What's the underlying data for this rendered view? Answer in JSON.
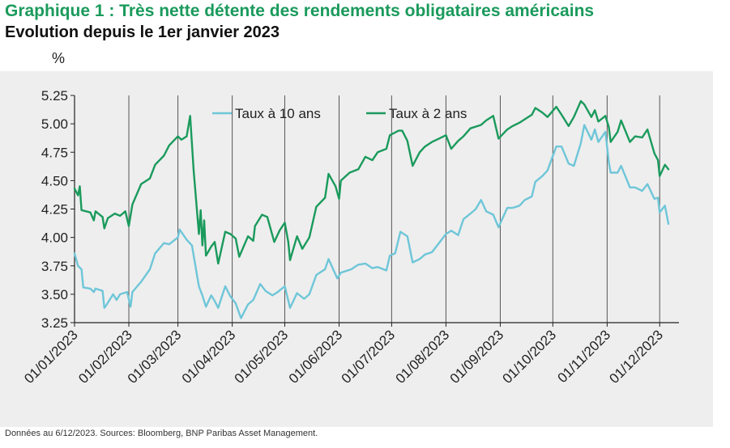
{
  "header": {
    "title": "Graphique 1 : Très nette détente des rendements obligataires américains",
    "subtitle": "Evolution depuis le 1er janvier 2023",
    "unit": "%"
  },
  "footnote": "Données au 6/12/2023. Sources: Bloomberg, BNP Paribas Asset Management.",
  "chart_data": {
    "type": "line",
    "ylabel": "%",
    "ylim": [
      3.25,
      5.25
    ],
    "yticks": [
      "5.25",
      "5.00",
      "4.75",
      "4.50",
      "4.25",
      "4.00",
      "3.75",
      "3.50",
      "3.25"
    ],
    "x_tick_labels": [
      "01/01/2023",
      "01/02/2023",
      "01/03/2023",
      "01/04/2023",
      "01/05/2023",
      "01/06/2023",
      "01/07/2023",
      "01/08/2023",
      "01/09/2023",
      "01/10/2023",
      "01/11/2023",
      "01/12/2023"
    ],
    "x_range": [
      "2023-01-01",
      "2023-12-12"
    ],
    "grid": "vertical",
    "legend_position": "top",
    "series": [
      {
        "name": "Taux à 10 ans",
        "color": "#6ec6d8",
        "points": [
          [
            "2023-01-01",
            3.86
          ],
          [
            "2023-01-03",
            3.75
          ],
          [
            "2023-01-05",
            3.72
          ],
          [
            "2023-01-06",
            3.56
          ],
          [
            "2023-01-10",
            3.55
          ],
          [
            "2023-01-12",
            3.52
          ],
          [
            "2023-01-13",
            3.55
          ],
          [
            "2023-01-17",
            3.53
          ],
          [
            "2023-01-18",
            3.38
          ],
          [
            "2023-01-19",
            3.4
          ],
          [
            "2023-01-23",
            3.5
          ],
          [
            "2023-01-25",
            3.45
          ],
          [
            "2023-01-27",
            3.5
          ],
          [
            "2023-01-31",
            3.52
          ],
          [
            "2023-02-02",
            3.39
          ],
          [
            "2023-02-03",
            3.52
          ],
          [
            "2023-02-08",
            3.61
          ],
          [
            "2023-02-13",
            3.72
          ],
          [
            "2023-02-16",
            3.86
          ],
          [
            "2023-02-21",
            3.95
          ],
          [
            "2023-02-24",
            3.94
          ],
          [
            "2023-03-01",
            4.0
          ],
          [
            "2023-03-02",
            4.07
          ],
          [
            "2023-03-06",
            3.98
          ],
          [
            "2023-03-09",
            3.93
          ],
          [
            "2023-03-13",
            3.57
          ],
          [
            "2023-03-15",
            3.49
          ],
          [
            "2023-03-17",
            3.39
          ],
          [
            "2023-03-20",
            3.49
          ],
          [
            "2023-03-22",
            3.44
          ],
          [
            "2023-03-24",
            3.38
          ],
          [
            "2023-03-28",
            3.57
          ],
          [
            "2023-03-31",
            3.48
          ],
          [
            "2023-04-03",
            3.42
          ],
          [
            "2023-04-06",
            3.29
          ],
          [
            "2023-04-10",
            3.41
          ],
          [
            "2023-04-13",
            3.45
          ],
          [
            "2023-04-17",
            3.59
          ],
          [
            "2023-04-20",
            3.53
          ],
          [
            "2023-04-24",
            3.49
          ],
          [
            "2023-04-27",
            3.52
          ],
          [
            "2023-05-01",
            3.57
          ],
          [
            "2023-05-04",
            3.38
          ],
          [
            "2023-05-08",
            3.51
          ],
          [
            "2023-05-12",
            3.46
          ],
          [
            "2023-05-15",
            3.5
          ],
          [
            "2023-05-19",
            3.67
          ],
          [
            "2023-05-24",
            3.72
          ],
          [
            "2023-05-26",
            3.81
          ],
          [
            "2023-05-31",
            3.64
          ],
          [
            "2023-06-02",
            3.69
          ],
          [
            "2023-06-08",
            3.72
          ],
          [
            "2023-06-12",
            3.76
          ],
          [
            "2023-06-16",
            3.77
          ],
          [
            "2023-06-20",
            3.73
          ],
          [
            "2023-06-23",
            3.74
          ],
          [
            "2023-06-28",
            3.71
          ],
          [
            "2023-06-30",
            3.84
          ],
          [
            "2023-07-03",
            3.86
          ],
          [
            "2023-07-06",
            4.05
          ],
          [
            "2023-07-10",
            4.01
          ],
          [
            "2023-07-13",
            3.78
          ],
          [
            "2023-07-17",
            3.81
          ],
          [
            "2023-07-20",
            3.85
          ],
          [
            "2023-07-24",
            3.87
          ],
          [
            "2023-07-28",
            3.95
          ],
          [
            "2023-08-01",
            4.03
          ],
          [
            "2023-08-04",
            4.06
          ],
          [
            "2023-08-08",
            4.02
          ],
          [
            "2023-08-11",
            4.16
          ],
          [
            "2023-08-15",
            4.21
          ],
          [
            "2023-08-18",
            4.25
          ],
          [
            "2023-08-21",
            4.33
          ],
          [
            "2023-08-24",
            4.23
          ],
          [
            "2023-08-28",
            4.2
          ],
          [
            "2023-08-31",
            4.09
          ],
          [
            "2023-09-05",
            4.26
          ],
          [
            "2023-09-08",
            4.26
          ],
          [
            "2023-09-12",
            4.28
          ],
          [
            "2023-09-15",
            4.33
          ],
          [
            "2023-09-19",
            4.36
          ],
          [
            "2023-09-21",
            4.49
          ],
          [
            "2023-09-25",
            4.54
          ],
          [
            "2023-09-28",
            4.59
          ],
          [
            "2023-10-03",
            4.8
          ],
          [
            "2023-10-06",
            4.8
          ],
          [
            "2023-10-10",
            4.65
          ],
          [
            "2023-10-13",
            4.63
          ],
          [
            "2023-10-17",
            4.83
          ],
          [
            "2023-10-19",
            4.99
          ],
          [
            "2023-10-23",
            4.86
          ],
          [
            "2023-10-25",
            4.95
          ],
          [
            "2023-10-27",
            4.84
          ],
          [
            "2023-10-31",
            4.93
          ],
          [
            "2023-11-02",
            4.66
          ],
          [
            "2023-11-03",
            4.57
          ],
          [
            "2023-11-07",
            4.57
          ],
          [
            "2023-11-09",
            4.63
          ],
          [
            "2023-11-14",
            4.44
          ],
          [
            "2023-11-17",
            4.44
          ],
          [
            "2023-11-21",
            4.41
          ],
          [
            "2023-11-24",
            4.47
          ],
          [
            "2023-11-28",
            4.34
          ],
          [
            "2023-11-30",
            4.35
          ],
          [
            "2023-12-01",
            4.22
          ],
          [
            "2023-12-04",
            4.28
          ],
          [
            "2023-12-06",
            4.12
          ]
        ]
      },
      {
        "name": "Taux à 2 ans",
        "color": "#1a9a5c",
        "points": [
          [
            "2023-01-01",
            4.43
          ],
          [
            "2023-01-03",
            4.37
          ],
          [
            "2023-01-04",
            4.45
          ],
          [
            "2023-01-05",
            4.24
          ],
          [
            "2023-01-10",
            4.22
          ],
          [
            "2023-01-12",
            4.15
          ],
          [
            "2023-01-13",
            4.23
          ],
          [
            "2023-01-17",
            4.18
          ],
          [
            "2023-01-18",
            4.08
          ],
          [
            "2023-01-20",
            4.17
          ],
          [
            "2023-01-24",
            4.21
          ],
          [
            "2023-01-27",
            4.19
          ],
          [
            "2023-01-30",
            4.23
          ],
          [
            "2023-02-01",
            4.1
          ],
          [
            "2023-02-03",
            4.29
          ],
          [
            "2023-02-08",
            4.47
          ],
          [
            "2023-02-13",
            4.52
          ],
          [
            "2023-02-16",
            4.64
          ],
          [
            "2023-02-21",
            4.72
          ],
          [
            "2023-02-24",
            4.81
          ],
          [
            "2023-03-01",
            4.89
          ],
          [
            "2023-03-03",
            4.86
          ],
          [
            "2023-03-06",
            4.89
          ],
          [
            "2023-03-08",
            5.07
          ],
          [
            "2023-03-10",
            4.59
          ],
          [
            "2023-03-13",
            4.03
          ],
          [
            "2023-03-14",
            4.24
          ],
          [
            "2023-03-15",
            3.93
          ],
          [
            "2023-03-16",
            4.15
          ],
          [
            "2023-03-17",
            3.84
          ],
          [
            "2023-03-20",
            3.92
          ],
          [
            "2023-03-22",
            3.96
          ],
          [
            "2023-03-24",
            3.77
          ],
          [
            "2023-03-28",
            4.05
          ],
          [
            "2023-03-31",
            4.03
          ],
          [
            "2023-04-03",
            3.99
          ],
          [
            "2023-04-05",
            3.83
          ],
          [
            "2023-04-10",
            4.01
          ],
          [
            "2023-04-13",
            3.97
          ],
          [
            "2023-04-14",
            4.1
          ],
          [
            "2023-04-18",
            4.2
          ],
          [
            "2023-04-21",
            4.18
          ],
          [
            "2023-04-25",
            3.96
          ],
          [
            "2023-04-28",
            4.06
          ],
          [
            "2023-05-01",
            4.13
          ],
          [
            "2023-05-03",
            3.96
          ],
          [
            "2023-05-04",
            3.8
          ],
          [
            "2023-05-08",
            4.01
          ],
          [
            "2023-05-11",
            3.9
          ],
          [
            "2023-05-15",
            4.0
          ],
          [
            "2023-05-19",
            4.27
          ],
          [
            "2023-05-24",
            4.35
          ],
          [
            "2023-05-26",
            4.56
          ],
          [
            "2023-05-30",
            4.45
          ],
          [
            "2023-06-01",
            4.34
          ],
          [
            "2023-06-02",
            4.5
          ],
          [
            "2023-06-07",
            4.57
          ],
          [
            "2023-06-12",
            4.6
          ],
          [
            "2023-06-16",
            4.71
          ],
          [
            "2023-06-20",
            4.68
          ],
          [
            "2023-06-23",
            4.75
          ],
          [
            "2023-06-28",
            4.78
          ],
          [
            "2023-06-30",
            4.9
          ],
          [
            "2023-07-05",
            4.94
          ],
          [
            "2023-07-07",
            4.94
          ],
          [
            "2023-07-10",
            4.85
          ],
          [
            "2023-07-13",
            4.63
          ],
          [
            "2023-07-17",
            4.75
          ],
          [
            "2023-07-20",
            4.8
          ],
          [
            "2023-07-24",
            4.84
          ],
          [
            "2023-07-28",
            4.87
          ],
          [
            "2023-08-01",
            4.9
          ],
          [
            "2023-08-04",
            4.78
          ],
          [
            "2023-08-08",
            4.85
          ],
          [
            "2023-08-11",
            4.89
          ],
          [
            "2023-08-15",
            4.96
          ],
          [
            "2023-08-21",
            4.99
          ],
          [
            "2023-08-24",
            5.03
          ],
          [
            "2023-08-28",
            5.07
          ],
          [
            "2023-08-31",
            4.87
          ],
          [
            "2023-09-05",
            4.95
          ],
          [
            "2023-09-08",
            4.98
          ],
          [
            "2023-09-12",
            5.01
          ],
          [
            "2023-09-15",
            5.04
          ],
          [
            "2023-09-19",
            5.08
          ],
          [
            "2023-09-21",
            5.14
          ],
          [
            "2023-09-25",
            5.1
          ],
          [
            "2023-09-28",
            5.06
          ],
          [
            "2023-10-03",
            5.15
          ],
          [
            "2023-10-06",
            5.08
          ],
          [
            "2023-10-10",
            4.98
          ],
          [
            "2023-10-13",
            5.06
          ],
          [
            "2023-10-17",
            5.2
          ],
          [
            "2023-10-19",
            5.17
          ],
          [
            "2023-10-23",
            5.06
          ],
          [
            "2023-10-25",
            5.12
          ],
          [
            "2023-10-27",
            5.02
          ],
          [
            "2023-10-31",
            5.07
          ],
          [
            "2023-11-02",
            4.97
          ],
          [
            "2023-11-03",
            4.84
          ],
          [
            "2023-11-07",
            4.93
          ],
          [
            "2023-11-09",
            5.03
          ],
          [
            "2023-11-14",
            4.84
          ],
          [
            "2023-11-17",
            4.89
          ],
          [
            "2023-11-21",
            4.88
          ],
          [
            "2023-11-24",
            4.95
          ],
          [
            "2023-11-28",
            4.74
          ],
          [
            "2023-11-30",
            4.68
          ],
          [
            "2023-12-01",
            4.54
          ],
          [
            "2023-12-04",
            4.64
          ],
          [
            "2023-12-06",
            4.6
          ]
        ]
      }
    ]
  }
}
